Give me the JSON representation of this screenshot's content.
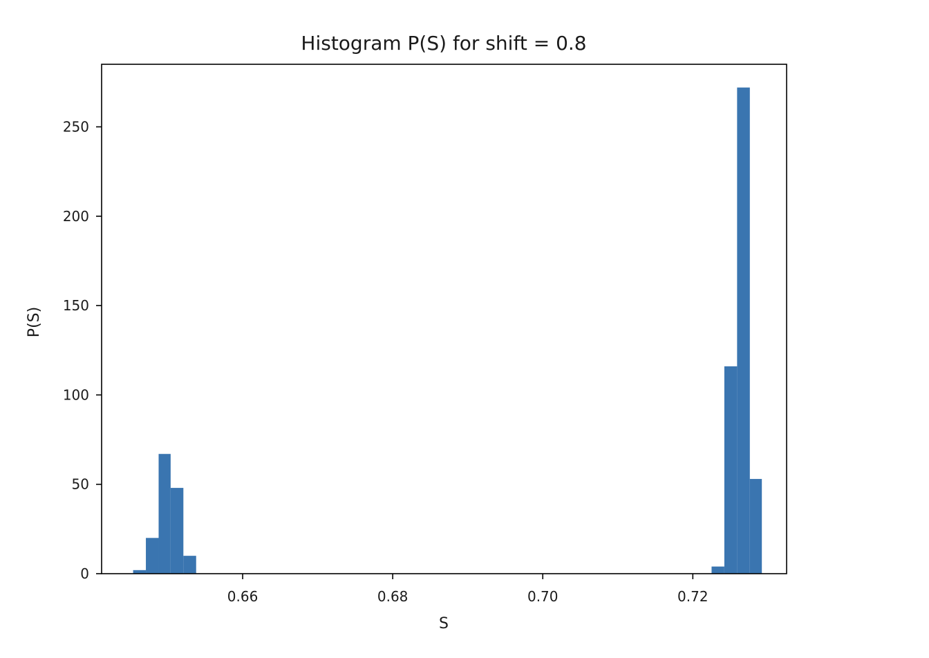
{
  "chart_data": {
    "type": "bar",
    "title": "Histogram P(S) for shift = 0.8",
    "xlabel": "S",
    "ylabel": "P(S)",
    "xlim": [
      0.6412,
      0.7325
    ],
    "ylim": [
      0,
      285
    ],
    "xticks": [
      0.66,
      0.68,
      0.7,
      0.72
    ],
    "xtick_labels": [
      "0.66",
      "0.68",
      "0.70",
      "0.72"
    ],
    "yticks": [
      0,
      50,
      100,
      150,
      200,
      250
    ],
    "ytick_labels": [
      "0",
      "50",
      "100",
      "150",
      "200",
      "250"
    ],
    "grid": false,
    "legend": false,
    "bar_color": "#3a75b0",
    "bins": [
      {
        "x0": 0.6454,
        "x1": 0.6471,
        "value": 2
      },
      {
        "x0": 0.6471,
        "x1": 0.6488,
        "value": 20
      },
      {
        "x0": 0.6488,
        "x1": 0.6504,
        "value": 67
      },
      {
        "x0": 0.6504,
        "x1": 0.6521,
        "value": 48
      },
      {
        "x0": 0.6521,
        "x1": 0.6538,
        "value": 10
      },
      {
        "x0": 0.6538,
        "x1": 0.7225,
        "value": 0
      },
      {
        "x0": 0.7225,
        "x1": 0.7242,
        "value": 4
      },
      {
        "x0": 0.7242,
        "x1": 0.7259,
        "value": 116
      },
      {
        "x0": 0.7259,
        "x1": 0.7276,
        "value": 272
      },
      {
        "x0": 0.7276,
        "x1": 0.7292,
        "value": 53
      }
    ]
  }
}
